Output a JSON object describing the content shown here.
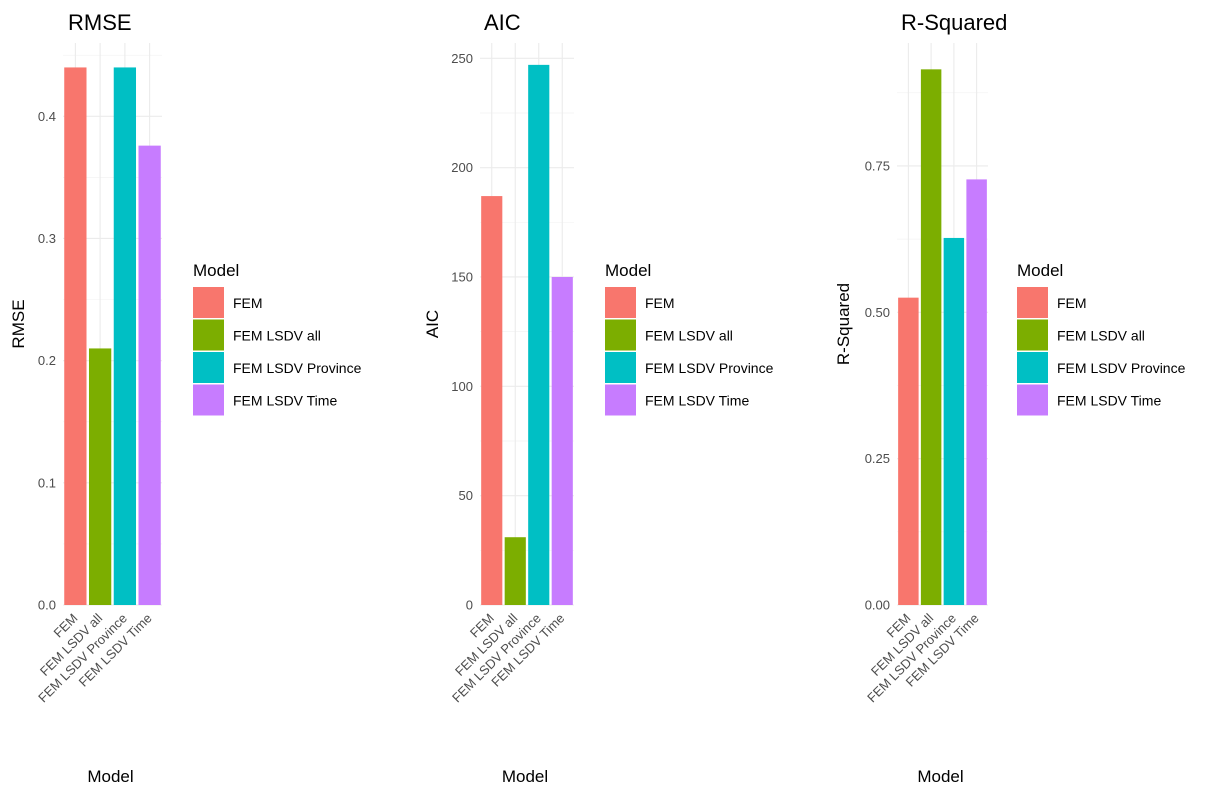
{
  "chart_data": [
    {
      "type": "bar",
      "title": "RMSE",
      "xlabel": "Model",
      "ylabel": "RMSE",
      "categories": [
        "FEM",
        "FEM LSDV all",
        "FEM LSDV Province",
        "FEM LSDV Time"
      ],
      "values": [
        0.44,
        0.21,
        0.44,
        0.376
      ],
      "ylim": [
        0,
        0.46
      ],
      "yticks": [
        0.0,
        0.1,
        0.2,
        0.3,
        0.4
      ],
      "ytick_labels": [
        "0.0",
        "0.1",
        "0.2",
        "0.3",
        "0.4"
      ],
      "grid": true,
      "legend": {
        "title": "Model",
        "position": "right",
        "entries": [
          "FEM",
          "FEM LSDV all",
          "FEM LSDV Province",
          "FEM LSDV Time"
        ]
      }
    },
    {
      "type": "bar",
      "title": "AIC",
      "xlabel": "Model",
      "ylabel": "AIC",
      "categories": [
        "FEM",
        "FEM LSDV all",
        "FEM LSDV Province",
        "FEM LSDV Time"
      ],
      "values": [
        187,
        31,
        247,
        150
      ],
      "ylim": [
        0,
        257
      ],
      "yticks": [
        0,
        50,
        100,
        150,
        200,
        250
      ],
      "ytick_labels": [
        "0",
        "50",
        "100",
        "150",
        "200",
        "250"
      ],
      "grid": true,
      "legend": {
        "title": "Model",
        "position": "right",
        "entries": [
          "FEM",
          "FEM LSDV all",
          "FEM LSDV Province",
          "FEM LSDV Time"
        ]
      }
    },
    {
      "type": "bar",
      "title": "R-Squared",
      "xlabel": "Model",
      "ylabel": "R-Squared",
      "categories": [
        "FEM",
        "FEM LSDV all",
        "FEM LSDV Province",
        "FEM LSDV Time"
      ],
      "values": [
        0.525,
        0.915,
        0.627,
        0.727
      ],
      "ylim": [
        0,
        0.96
      ],
      "yticks": [
        0.0,
        0.25,
        0.5,
        0.75
      ],
      "ytick_labels": [
        "0.00",
        "0.25",
        "0.50",
        "0.75"
      ],
      "grid": true,
      "legend": {
        "title": "Model",
        "position": "right",
        "entries": [
          "FEM",
          "FEM LSDV all",
          "FEM LSDV Province",
          "FEM LSDV Time"
        ]
      }
    }
  ],
  "colors": {
    "FEM": "#F8766D",
    "FEM LSDV all": "#7CAE00",
    "FEM LSDV Province": "#00BFC4",
    "FEM LSDV Time": "#C77CFF"
  }
}
